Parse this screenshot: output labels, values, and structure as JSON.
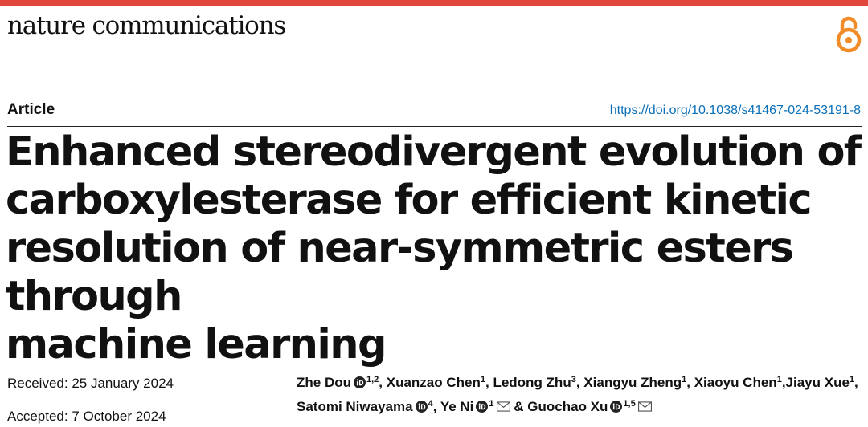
{
  "header": {
    "journal_name": "nature communications",
    "accent_color": "#e3463a",
    "open_access_icon": "open-access-lock-icon",
    "open_access_color": "#f28c28"
  },
  "article": {
    "type_label": "Article",
    "doi": "https://doi.org/10.1038/s41467-024-53191-8",
    "doi_color": "#0a6fb8",
    "title_lines": [
      "Enhanced stereodivergent evolution of",
      "carboxylesterase for efficient kinetic",
      "resolution of near-symmetric esters through",
      "machine learning"
    ]
  },
  "dates": {
    "received": "Received: 25 January 2024",
    "accepted": "Accepted: 7 October 2024"
  },
  "authors": [
    {
      "name": "Zhe Dou",
      "orcid": true,
      "affil": "1,2",
      "sep": ", "
    },
    {
      "name": "Xuanzao Chen",
      "affil": "1",
      "sep": ", "
    },
    {
      "name": "Ledong Zhu",
      "affil": "3",
      "sep": ", "
    },
    {
      "name": "Xiangyu Zheng",
      "affil": "1",
      "sep": ", "
    },
    {
      "name": "Xiaoyu Chen",
      "affil": "1",
      "sep": ","
    },
    {
      "name": "Jiayu Xue",
      "affil": "1",
      "sep": ", "
    },
    {
      "name": "Satomi Niwayama",
      "orcid": true,
      "affil": "4",
      "sep": ", "
    },
    {
      "name": "Ye Ni",
      "orcid": true,
      "affil": "1",
      "mail": true,
      "sep": " & "
    },
    {
      "name": "Guochao Xu",
      "orcid": true,
      "affil": "1,5",
      "mail": true,
      "sep": ""
    }
  ]
}
